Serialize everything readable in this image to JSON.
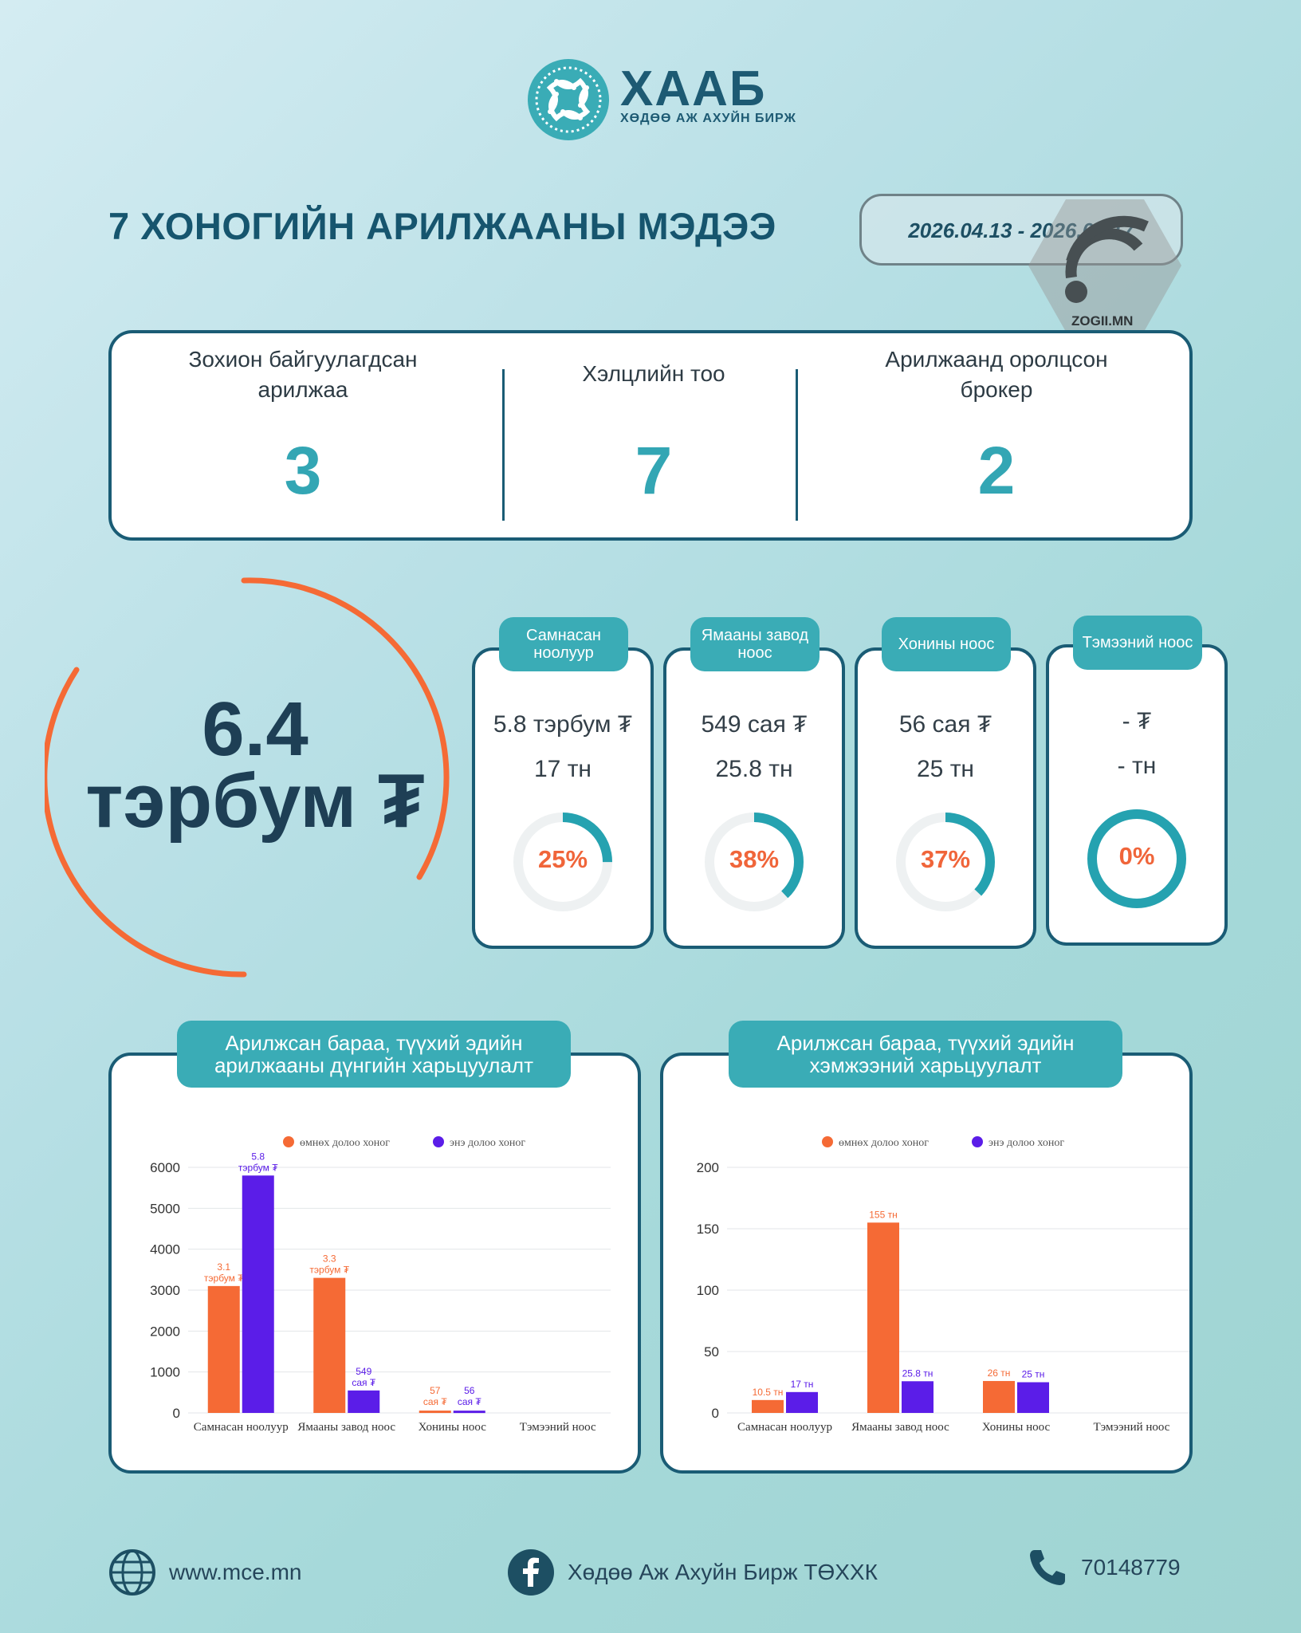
{
  "logo": {
    "name": "ХААБ",
    "subtitle": "ХӨДӨӨ АЖ АХУЙН БИРЖ"
  },
  "title": "7 ХОНОГИЙН АРИЛЖААНЫ МЭДЭЭ",
  "date_range": "2026.04.13 - 2026.04.17",
  "watermark": "ZOGII.MN",
  "colors": {
    "accent": "#3aacb6",
    "navy": "#1a5c75",
    "orange": "#f56a35",
    "purple": "#5b1de8"
  },
  "stats": [
    {
      "label": "Зохион байгуулагдсан арилжаа",
      "value": "3"
    },
    {
      "label": "Хэлцлийн тоо",
      "value": "7"
    },
    {
      "label": "Арилжаанд оролцсон брокер",
      "value": "2"
    }
  ],
  "total": {
    "line1": "6.4",
    "line2": "тэрбум ₮"
  },
  "commodities": [
    {
      "name": "Самнасан ноолуур",
      "amount": "5.8 тэрбум ₮",
      "volume": "17 тн",
      "pct_label": "25%",
      "pct": 25
    },
    {
      "name": "Ямааны завод ноос",
      "amount": "549 сая ₮",
      "volume": "25.8 тн",
      "pct_label": "38%",
      "pct": 38
    },
    {
      "name": "Хонины ноос",
      "amount": "56 сая ₮",
      "volume": "25 тн",
      "pct_label": "37%",
      "pct": 37
    },
    {
      "name": "Тэмээний ноос",
      "amount": "- ₮",
      "volume": "- тн",
      "pct_label": "0%",
      "pct": 0
    }
  ],
  "chart_data": [
    {
      "type": "bar",
      "title": "Арилжсан бараа, түүхий эдийн арилжааны дүнгийн харьцуулалт",
      "categories": [
        "Самнасан ноолуур",
        "Ямааны завод ноос",
        "Хонины ноос",
        "Тэмээний ноос"
      ],
      "series": [
        {
          "name": "өмнөх долоо хоног",
          "values": [
            3100,
            3300,
            57,
            0
          ],
          "labels": [
            "3.1 тэрбум ₮",
            "3.3 тэрбум ₮",
            "57 сая ₮",
            ""
          ]
        },
        {
          "name": "энэ долоо хоног",
          "values": [
            5800,
            549,
            56,
            0
          ],
          "labels": [
            "5.8 тэрбум ₮",
            "549 сая ₮",
            "56 сая ₮",
            ""
          ]
        }
      ],
      "yticks": [
        "0",
        "1000",
        "2000",
        "3000",
        "4000",
        "5000",
        "6000"
      ],
      "ylim": [
        0,
        6000
      ],
      "legend": "top",
      "grid": true
    },
    {
      "type": "bar",
      "title": "Арилжсан бараа, түүхий эдийн хэмжээний харьцуулалт",
      "categories": [
        "Самнасан ноолуур",
        "Ямааны завод ноос",
        "Хонины ноос",
        "Тэмээний ноос"
      ],
      "series": [
        {
          "name": "өмнөх долоо хоног",
          "values": [
            10.5,
            155,
            26,
            0
          ],
          "labels": [
            "10.5 тн",
            "155 тн",
            "26 тн",
            ""
          ]
        },
        {
          "name": "энэ долоо хоног",
          "values": [
            17,
            25.8,
            25,
            0
          ],
          "labels": [
            "17 тн",
            "25.8 тн",
            "25 тн",
            ""
          ]
        }
      ],
      "yticks": [
        "0",
        "50",
        "100",
        "150",
        "200"
      ],
      "ylim": [
        0,
        200
      ],
      "legend": "top",
      "grid": true
    }
  ],
  "footer": {
    "website": "www.mce.mn",
    "facebook": "Хөдөө Аж Ахуйн Бирж ТӨХХК",
    "phone": "70148779"
  }
}
